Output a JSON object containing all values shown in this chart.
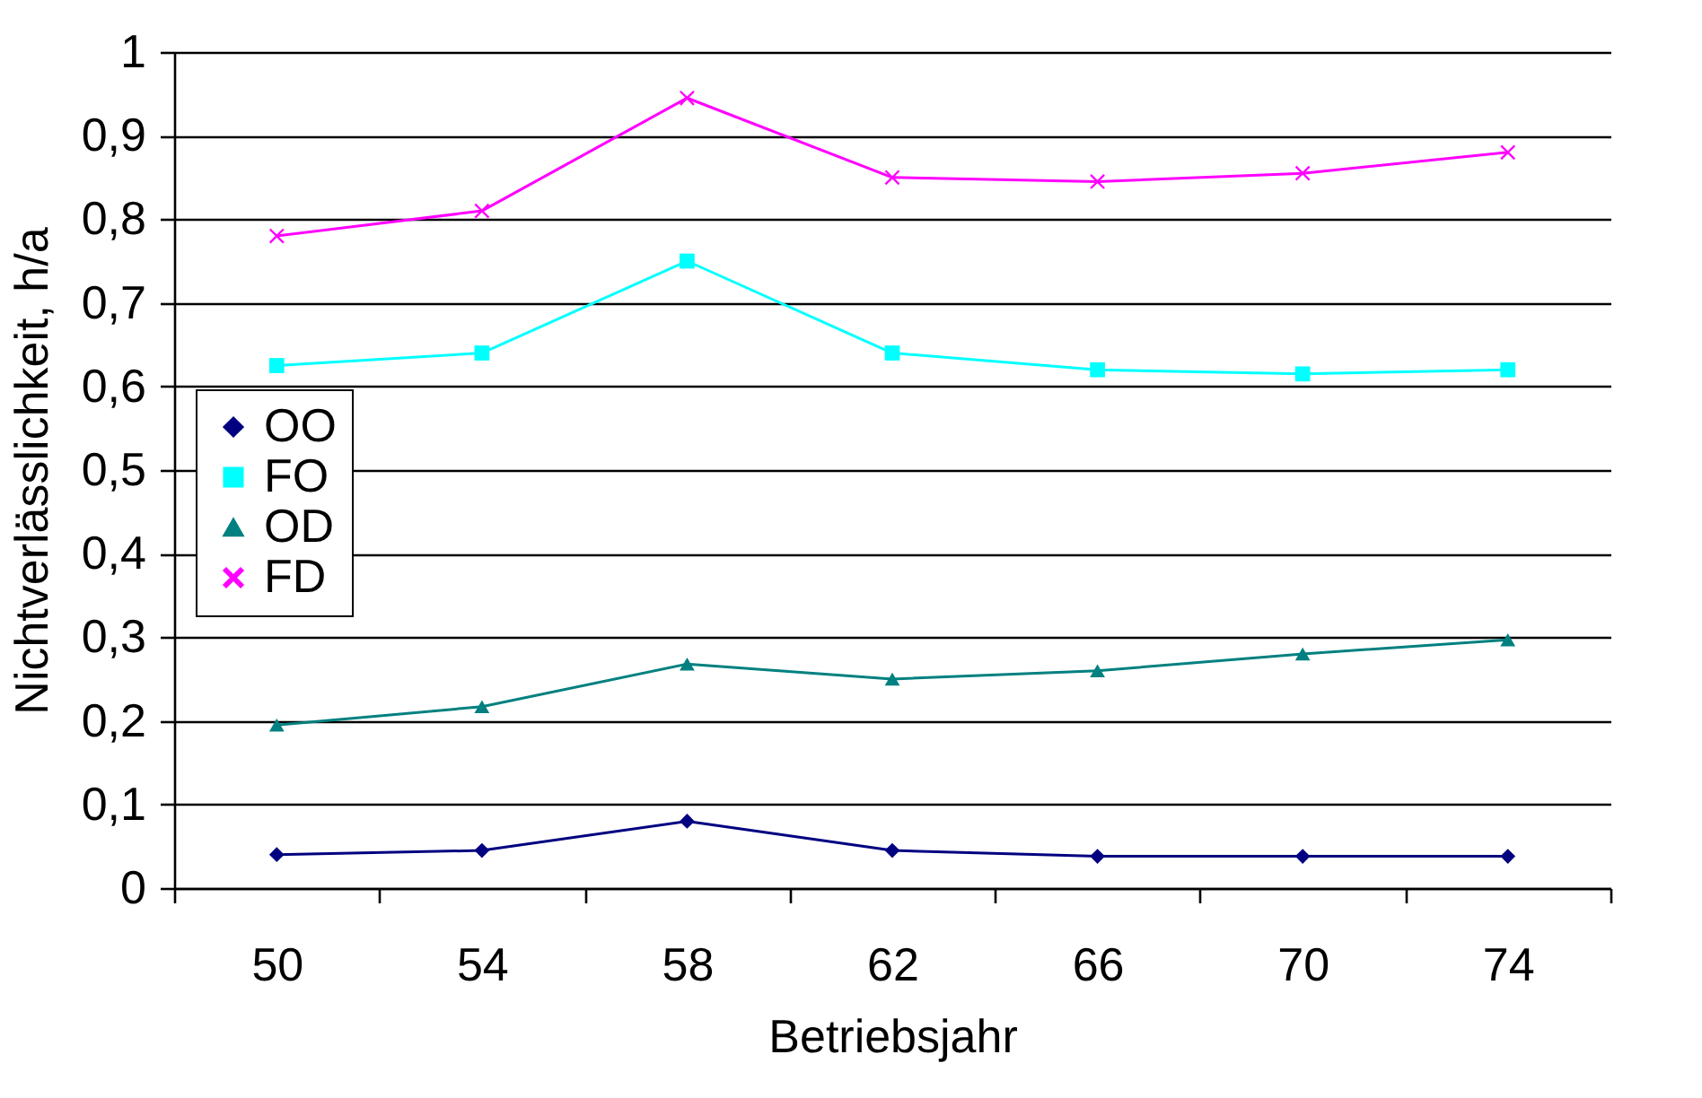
{
  "chart_data": {
    "type": "line",
    "xlabel": "Betriebsjahr",
    "ylabel": "Nichtverlässlichkeit, h/a",
    "categories": [
      "50",
      "54",
      "58",
      "62",
      "66",
      "70",
      "74"
    ],
    "series": [
      {
        "name": "OO",
        "color": "#000080",
        "marker": "diamond",
        "values": [
          0.04,
          0.045,
          0.08,
          0.045,
          0.038,
          0.038,
          0.038
        ]
      },
      {
        "name": "FO",
        "color": "#00ffff",
        "marker": "square",
        "values": [
          0.625,
          0.64,
          0.75,
          0.64,
          0.62,
          0.615,
          0.62
        ]
      },
      {
        "name": "OD",
        "color": "#008080",
        "marker": "triangle",
        "values": [
          0.195,
          0.217,
          0.268,
          0.25,
          0.26,
          0.28,
          0.297
        ]
      },
      {
        "name": "FD",
        "color": "#ff00ff",
        "marker": "cross",
        "values": [
          0.78,
          0.81,
          0.945,
          0.85,
          0.845,
          0.855,
          0.88
        ]
      }
    ],
    "ylim": [
      0,
      1
    ],
    "yticks": [
      0,
      {
        "value": 0.1,
        "label": "0,1"
      },
      {
        "value": 0.2,
        "label": "0,2"
      },
      {
        "value": 0.3,
        "label": "0,3"
      },
      {
        "value": 0.4,
        "label": "0,4"
      },
      {
        "value": 0.5,
        "label": "0,5"
      },
      {
        "value": 0.6,
        "label": "0,6"
      },
      {
        "value": 0.7,
        "label": "0,7"
      },
      {
        "value": 0.8,
        "label": "0,8"
      },
      {
        "value": 0.9,
        "label": "0,9"
      },
      1
    ],
    "grid": "y",
    "legend": "left",
    "line_style": "solid"
  }
}
